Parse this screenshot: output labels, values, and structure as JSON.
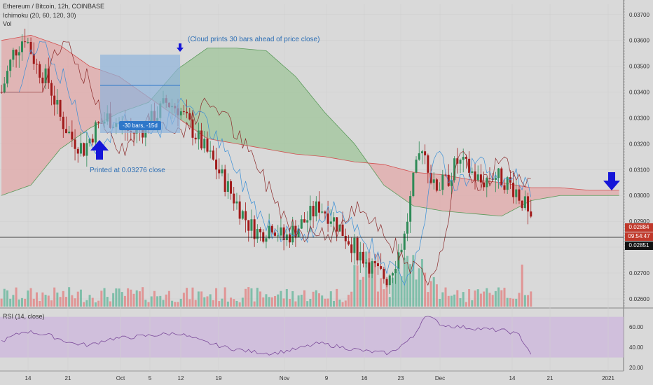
{
  "header": {
    "title": "Ethereum / Bitcoin, 12h, COINBASE",
    "indicator_ichimoku": "Ichimoku (20, 60, 120, 30)",
    "indicator_vol": "Vol",
    "indicator_rsi": "RSI (14, close)"
  },
  "annotations": {
    "cloud_note": "(Cloud prints 30 bars ahead of price close)",
    "printed_note": "Printed at 0.03276 close",
    "measure_label": "-30 bars, -15d"
  },
  "price_tags": {
    "last_price": "0.02884",
    "countdown": "09:54:47",
    "crosshair": "0.02851"
  },
  "colors": {
    "background": "#d9d9d9",
    "up_candle": "#2e8b57",
    "down_candle": "#a11a1a",
    "bull_cloud": "#9fc49a",
    "bear_cloud": "#e2a8a8",
    "rsi_band": "#cdb8dc",
    "annotation_arrow": "#1515d8",
    "measure_box": "#8fb3dc"
  },
  "chart_data": {
    "type": "candlestick",
    "symbol": "Ethereum / Bitcoin",
    "timeframe": "12h",
    "exchange": "COINBASE",
    "x_tick_labels": [
      "14",
      "21",
      "Oct",
      "5",
      "12",
      "19",
      "Nov",
      "9",
      "16",
      "23",
      "Dec",
      "14",
      "21",
      "2021"
    ],
    "y_tick_labels": [
      "0.03700",
      "0.03600",
      "0.03500",
      "0.03400",
      "0.03300",
      "0.03200",
      "0.03100",
      "0.03000",
      "0.02900",
      "0.02800",
      "0.02700",
      "0.02600"
    ],
    "ylim": [
      0.0257,
      0.0374
    ],
    "rsi_tick_labels": [
      "60.00",
      "40.00",
      "20.00"
    ],
    "rsi_lim": [
      18,
      76
    ],
    "rsi_band": [
      30,
      70
    ],
    "close_path": [
      [
        0,
        0.034
      ],
      [
        4,
        0.0355
      ],
      [
        8,
        0.0362
      ],
      [
        12,
        0.035
      ],
      [
        16,
        0.0344
      ],
      [
        20,
        0.033
      ],
      [
        24,
        0.0322
      ],
      [
        28,
        0.0318
      ],
      [
        32,
        0.0326
      ],
      [
        36,
        0.033
      ],
      [
        40,
        0.0328
      ],
      [
        44,
        0.0324
      ],
      [
        48,
        0.0326
      ],
      [
        52,
        0.033
      ],
      [
        56,
        0.0336
      ],
      [
        60,
        0.0334
      ],
      [
        64,
        0.0327
      ],
      [
        68,
        0.032
      ],
      [
        72,
        0.0313
      ],
      [
        76,
        0.0305
      ],
      [
        80,
        0.0297
      ],
      [
        84,
        0.0289
      ],
      [
        88,
        0.0285
      ],
      [
        92,
        0.0289
      ],
      [
        96,
        0.0283
      ],
      [
        100,
        0.0287
      ],
      [
        104,
        0.0291
      ],
      [
        108,
        0.0296
      ],
      [
        112,
        0.0292
      ],
      [
        116,
        0.0286
      ],
      [
        120,
        0.028
      ],
      [
        124,
        0.0275
      ],
      [
        128,
        0.027
      ],
      [
        131,
        0.0268
      ],
      [
        134,
        0.0275
      ],
      [
        137,
        0.0284
      ],
      [
        140,
        0.0305
      ],
      [
        143,
        0.032
      ],
      [
        147,
        0.0303
      ],
      [
        151,
        0.0305
      ],
      [
        155,
        0.0313
      ],
      [
        159,
        0.031
      ],
      [
        163,
        0.0305
      ],
      [
        167,
        0.0308
      ],
      [
        171,
        0.0306
      ],
      [
        175,
        0.0302
      ],
      [
        178,
        0.0296
      ],
      [
        180,
        0.0288
      ]
    ],
    "ichimoku": {
      "span_a": [
        [
          0,
          0.03
        ],
        [
          10,
          0.0304
        ],
        [
          20,
          0.0318
        ],
        [
          30,
          0.0326
        ],
        [
          40,
          0.0332
        ],
        [
          50,
          0.0336
        ],
        [
          60,
          0.0349
        ],
        [
          70,
          0.0357
        ],
        [
          80,
          0.0357
        ],
        [
          90,
          0.0356
        ],
        [
          100,
          0.0346
        ],
        [
          110,
          0.0332
        ],
        [
          120,
          0.032
        ],
        [
          130,
          0.0304
        ],
        [
          140,
          0.0296
        ],
        [
          150,
          0.0294
        ],
        [
          160,
          0.0293
        ],
        [
          170,
          0.0292
        ],
        [
          180,
          0.0298
        ],
        [
          190,
          0.03
        ],
        [
          200,
          0.03
        ],
        [
          210,
          0.03
        ]
      ],
      "span_b": [
        [
          0,
          0.036
        ],
        [
          10,
          0.0362
        ],
        [
          20,
          0.0358
        ],
        [
          30,
          0.035
        ],
        [
          40,
          0.0346
        ],
        [
          50,
          0.0338
        ],
        [
          60,
          0.033
        ],
        [
          70,
          0.0322
        ],
        [
          80,
          0.032
        ],
        [
          90,
          0.0318
        ],
        [
          100,
          0.0316
        ],
        [
          110,
          0.0315
        ],
        [
          120,
          0.0313
        ],
        [
          130,
          0.0312
        ],
        [
          140,
          0.0309
        ],
        [
          150,
          0.0308
        ],
        [
          160,
          0.0306
        ],
        [
          170,
          0.0305
        ],
        [
          180,
          0.0303
        ],
        [
          190,
          0.0303
        ],
        [
          200,
          0.0302
        ],
        [
          210,
          0.0302
        ]
      ]
    },
    "rsi": [
      [
        0,
        46
      ],
      [
        8,
        56
      ],
      [
        16,
        52
      ],
      [
        24,
        44
      ],
      [
        30,
        42
      ],
      [
        36,
        48
      ],
      [
        44,
        50
      ],
      [
        52,
        52
      ],
      [
        60,
        54
      ],
      [
        68,
        46
      ],
      [
        76,
        40
      ],
      [
        84,
        36
      ],
      [
        92,
        34
      ],
      [
        100,
        38
      ],
      [
        108,
        44
      ],
      [
        116,
        40
      ],
      [
        124,
        36
      ],
      [
        132,
        34
      ],
      [
        140,
        50
      ],
      [
        144,
        72
      ],
      [
        150,
        62
      ],
      [
        156,
        60
      ],
      [
        164,
        58
      ],
      [
        172,
        56
      ],
      [
        176,
        52
      ],
      [
        180,
        34
      ]
    ]
  }
}
